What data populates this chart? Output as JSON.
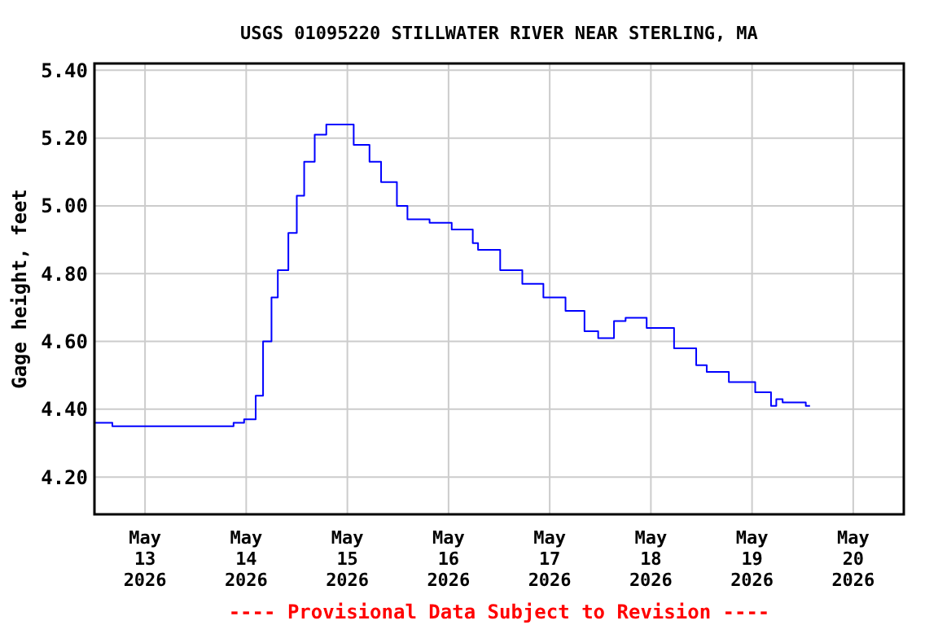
{
  "chart_data": {
    "type": "step",
    "title": "USGS 01095220 STILLWATER RIVER NEAR STERLING, MA",
    "ylabel": "Gage height, feet",
    "annotations": [
      "---- Provisional Data Subject to Revision ----"
    ],
    "xlim": [
      "2026-05-12T12:00",
      "2026-05-20T12:00"
    ],
    "xticks": [
      {
        "value": "2026-05-13",
        "label": "May\n13\n2026"
      },
      {
        "value": "2026-05-14",
        "label": "May\n14\n2026"
      },
      {
        "value": "2026-05-15",
        "label": "May\n15\n2026"
      },
      {
        "value": "2026-05-16",
        "label": "May\n16\n2026"
      },
      {
        "value": "2026-05-17",
        "label": "May\n17\n2026"
      },
      {
        "value": "2026-05-18",
        "label": "May\n18\n2026"
      },
      {
        "value": "2026-05-19",
        "label": "May\n19\n2026"
      },
      {
        "value": "2026-05-20",
        "label": "May\n20\n2026"
      }
    ],
    "ylim": [
      4.09,
      5.42
    ],
    "yticks": [
      {
        "value": 4.2,
        "label": "4.20"
      },
      {
        "value": 4.4,
        "label": "4.40"
      },
      {
        "value": 4.6,
        "label": "4.60"
      },
      {
        "value": 4.8,
        "label": "4.80"
      },
      {
        "value": 5.0,
        "label": "5.00"
      },
      {
        "value": 5.2,
        "label": "5.20"
      },
      {
        "value": 5.4,
        "label": "5.40"
      }
    ],
    "grid": true,
    "series": [
      {
        "color": "#0000ff",
        "x": [
          "2026-05-12T12:00",
          "2026-05-12T16:15",
          "2026-05-13T21:00",
          "2026-05-13T23:30",
          "2026-05-14T01:15",
          "2026-05-14T02:15",
          "2026-05-14T04:00",
          "2026-05-14T06:00",
          "2026-05-14T07:30",
          "2026-05-14T10:00",
          "2026-05-14T12:00",
          "2026-05-14T13:45",
          "2026-05-14T16:15",
          "2026-05-14T19:00",
          "2026-05-14T21:30",
          "2026-05-15T01:30",
          "2026-05-15T05:15",
          "2026-05-15T08:00",
          "2026-05-15T11:45",
          "2026-05-15T14:15",
          "2026-05-15T17:30",
          "2026-05-15T19:30",
          "2026-05-15T22:00",
          "2026-05-16T00:45",
          "2026-05-16T05:45",
          "2026-05-16T07:00",
          "2026-05-16T12:15",
          "2026-05-16T17:30",
          "2026-05-16T22:30",
          "2026-05-17T03:45",
          "2026-05-17T08:15",
          "2026-05-17T11:30",
          "2026-05-17T15:15",
          "2026-05-17T18:00",
          "2026-05-17T19:15",
          "2026-05-17T23:00",
          "2026-05-18T05:30",
          "2026-05-18T10:45",
          "2026-05-18T13:15",
          "2026-05-18T18:30",
          "2026-05-19T00:45",
          "2026-05-19T04:30",
          "2026-05-19T05:45",
          "2026-05-19T07:15",
          "2026-05-19T12:00",
          "2026-05-19T12:45",
          "2026-05-19T13:45"
        ],
        "values": [
          4.36,
          4.35,
          4.36,
          4.37,
          4.37,
          4.44,
          4.6,
          4.73,
          4.81,
          4.92,
          5.03,
          5.13,
          5.21,
          5.24,
          5.24,
          5.18,
          5.13,
          5.07,
          5.0,
          4.96,
          4.96,
          4.95,
          4.95,
          4.93,
          4.89,
          4.87,
          4.81,
          4.77,
          4.73,
          4.69,
          4.63,
          4.61,
          4.66,
          4.67,
          4.67,
          4.64,
          4.58,
          4.53,
          4.51,
          4.48,
          4.45,
          4.41,
          4.43,
          4.42,
          4.42,
          4.41,
          4.41
        ]
      }
    ]
  }
}
